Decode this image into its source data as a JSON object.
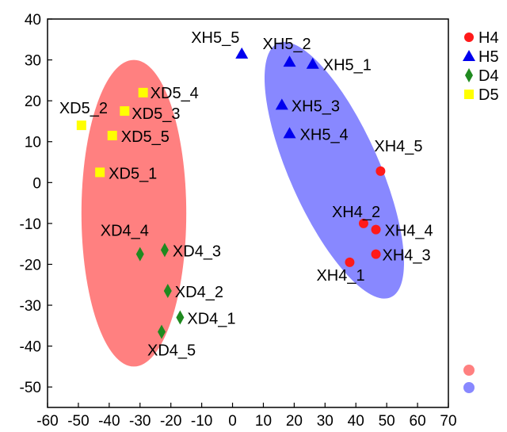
{
  "chart_data": {
    "type": "scatter",
    "title": "",
    "xlabel": "",
    "ylabel": "",
    "xlim": [
      -60,
      70
    ],
    "ylim": [
      -55,
      40
    ],
    "x_ticks": [
      -60,
      -50,
      -40,
      -30,
      -20,
      -10,
      0,
      10,
      20,
      30,
      40,
      50,
      60,
      70
    ],
    "y_ticks": [
      40,
      30,
      20,
      10,
      0,
      -10,
      -20,
      -30,
      -40,
      -50
    ],
    "x_tick_labels": [
      "-60",
      "-50",
      "-40",
      "-30",
      "-20",
      "-10",
      "0",
      "10",
      "20",
      "30",
      "40",
      "50",
      "60",
      "70"
    ],
    "y_tick_labels": [
      "40",
      "30",
      "20",
      "10",
      "0",
      "-10",
      "-20",
      "-30",
      "-40",
      "-50"
    ],
    "grid": false,
    "legend_position": "top-right",
    "series": [
      {
        "name": "H4",
        "marker": "circle",
        "color": "#ff1a1a",
        "points": [
          {
            "label": "XH4_1",
            "x": 38,
            "y": -19.5
          },
          {
            "label": "XH4_2",
            "x": 42.5,
            "y": -10
          },
          {
            "label": "XH4_3",
            "x": 46.5,
            "y": -17.5
          },
          {
            "label": "XH4_4",
            "x": 46.5,
            "y": -11.5
          },
          {
            "label": "XH4_5",
            "x": 48,
            "y": 2.8
          }
        ]
      },
      {
        "name": "H5",
        "marker": "triangle",
        "color": "#0000ee",
        "points": [
          {
            "label": "XH5_1",
            "x": 26,
            "y": 29
          },
          {
            "label": "XH5_2",
            "x": 18.5,
            "y": 29.5
          },
          {
            "label": "XH5_3",
            "x": 16,
            "y": 19
          },
          {
            "label": "XH5_4",
            "x": 18.5,
            "y": 12
          },
          {
            "label": "XH5_5",
            "x": 3,
            "y": 31.5
          }
        ]
      },
      {
        "name": "D4",
        "marker": "diamond",
        "color": "#1f8a1f",
        "points": [
          {
            "label": "XD4_1",
            "x": -17,
            "y": -33
          },
          {
            "label": "XD4_2",
            "x": -21,
            "y": -26.5
          },
          {
            "label": "XD4_3",
            "x": -22,
            "y": -16.5
          },
          {
            "label": "XD4_4",
            "x": -30,
            "y": -17.5
          },
          {
            "label": "XD4_5",
            "x": -23,
            "y": -36.5
          }
        ]
      },
      {
        "name": "D5",
        "marker": "square",
        "color": "#ffff00",
        "points": [
          {
            "label": "XD5_1",
            "x": -43,
            "y": 2.5
          },
          {
            "label": "XD5_2",
            "x": -49,
            "y": 14
          },
          {
            "label": "XD5_3",
            "x": -35,
            "y": 17.5
          },
          {
            "label": "XD5_4",
            "x": -29,
            "y": 22
          },
          {
            "label": "XD5_5",
            "x": -39,
            "y": 11.5
          }
        ]
      }
    ],
    "ellipses": [
      {
        "color": "#ff8080",
        "cx": -32,
        "cy": -7.5,
        "rx": 17,
        "ry": 37.5,
        "rotation_deg": 0
      },
      {
        "color": "#8888ff",
        "cx": 33,
        "cy": 3,
        "rx": 14.5,
        "ry": 34,
        "rotation_deg": -24
      }
    ]
  }
}
